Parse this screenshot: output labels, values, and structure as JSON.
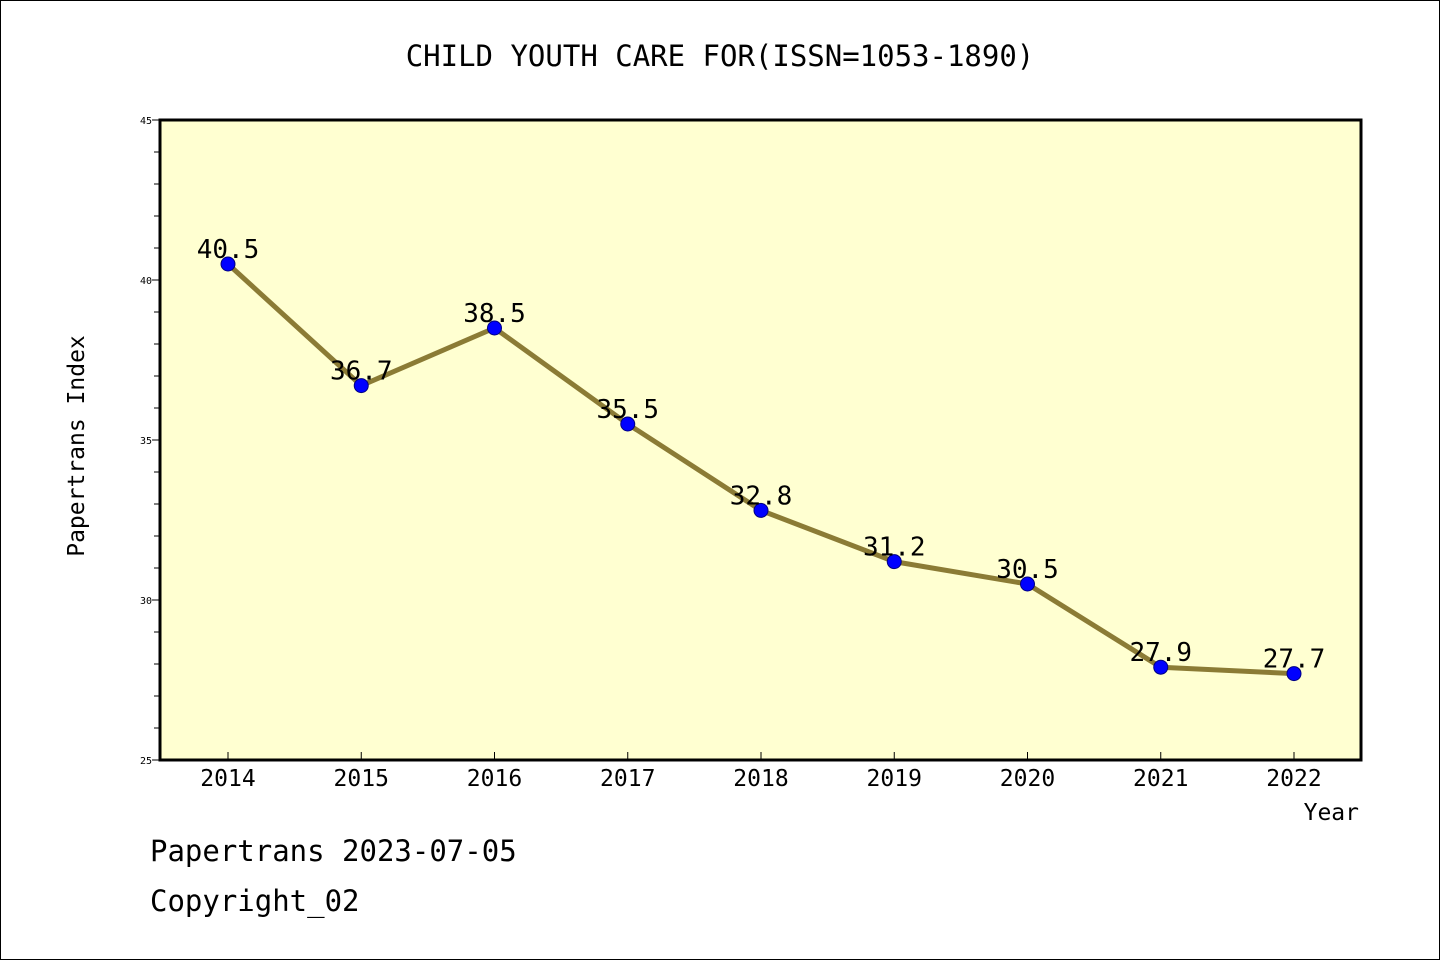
{
  "chart_data": {
    "type": "line",
    "title": "CHILD YOUTH CARE FOR(ISSN=1053-1890)",
    "xlabel": "Year",
    "ylabel": "Papertrans Index",
    "categories": [
      "2014",
      "2015",
      "2016",
      "2017",
      "2018",
      "2019",
      "2020",
      "2021",
      "2022"
    ],
    "series": [
      {
        "values": [
          40.5,
          36.7,
          38.5,
          35.5,
          32.8,
          31.2,
          30.5,
          27.9,
          27.7
        ],
        "labels": [
          "40.5",
          "36.7",
          "38.5",
          "35.5",
          "32.8",
          "31.2",
          "30.5",
          "27.9",
          "27.7"
        ],
        "line_color": "#8b7b35",
        "marker_color": "#0000ff"
      }
    ],
    "ylim": [
      25,
      45
    ],
    "yticks": [
      "25",
      "30",
      "35",
      "40",
      "45"
    ],
    "grid": false,
    "legend": "none",
    "plot_background": "#ffffd1"
  },
  "footer": {
    "line1": "Papertrans 2023-07-05",
    "line2": "Copyright_02"
  }
}
